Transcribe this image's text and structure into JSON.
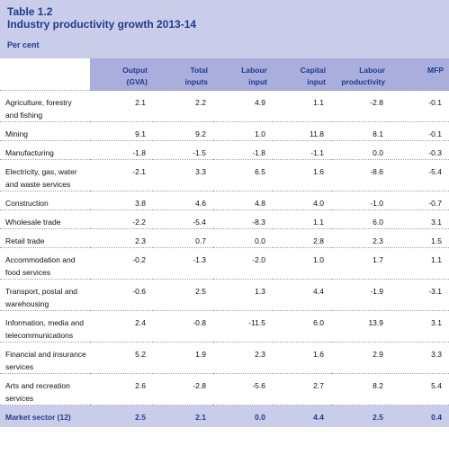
{
  "header": {
    "label": "Table 1.2",
    "title": "Industry productivity growth 2013-14",
    "unit": "Per cent"
  },
  "table": {
    "columns": [
      [
        "Output",
        "(GVA)"
      ],
      [
        "Total",
        "inputs"
      ],
      [
        "Labour",
        "input"
      ],
      [
        "Capital",
        "input"
      ],
      [
        "Labour",
        "productivity"
      ],
      [
        "MFP"
      ]
    ],
    "rows": [
      [
        "Agriculture, forestry and fishing",
        "2.1",
        "2.2",
        "4.9",
        "1.1",
        "-2.8",
        "-0.1"
      ],
      [
        "Mining",
        "9.1",
        "9.2",
        "1.0",
        "11.8",
        "8.1",
        "-0.1"
      ],
      [
        "Manufacturing",
        "-1.8",
        "-1.5",
        "-1.8",
        "-1.1",
        "0.0",
        "-0.3"
      ],
      [
        "Electricity, gas, water and waste services",
        "-2.1",
        "3.3",
        "6.5",
        "1.6",
        "-8.6",
        "-5.4"
      ],
      [
        "Construction",
        "3.8",
        "4.6",
        "4.8",
        "4.0",
        "-1.0",
        "-0.7"
      ],
      [
        "Wholesale trade",
        "-2.2",
        "-5.4",
        "-8.3",
        "1.1",
        "6.0",
        "3.1"
      ],
      [
        "Retail trade",
        "2.3",
        "0.7",
        "0.0",
        "2.8",
        "2.3",
        "1.5"
      ],
      [
        "Accommodation and food services",
        "-0.2",
        "-1.3",
        "-2.0",
        "1.0",
        "1.7",
        "1.1"
      ],
      [
        "Transport, postal and warehousing",
        "-0.6",
        "2.5",
        "1.3",
        "4.4",
        "-1.9",
        "-3.1"
      ],
      [
        "Information, media and telecommunications",
        "2.4",
        "-0.8",
        "-11.5",
        "6.0",
        "13.9",
        "3.1"
      ],
      [
        "Financial and insurance services",
        "5.2",
        "1.9",
        "2.3",
        "1.6",
        "2.9",
        "3.3"
      ],
      [
        "Arts and recreation services",
        "2.6",
        "-2.8",
        "-5.6",
        "2.7",
        "8.2",
        "5.4"
      ],
      [
        "Market sector (12)",
        "2.5",
        "2.1",
        "0.0",
        "4.4",
        "2.5",
        "0.4"
      ]
    ]
  }
}
